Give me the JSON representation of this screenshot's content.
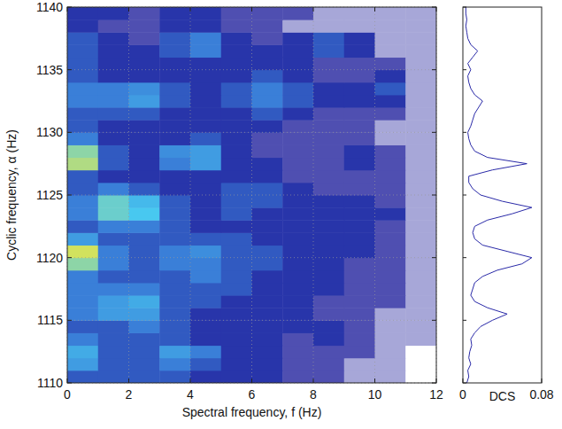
{
  "chart_data": [
    {
      "type": "heatmap",
      "xlabel": "Spectral frequency, f (Hz)",
      "ylabel": "Cyclic frequency, α (Hz)",
      "x_edges": [
        0,
        1,
        2,
        3,
        4,
        5,
        6,
        7,
        8,
        9,
        10,
        11,
        12
      ],
      "y_edges": [
        1110,
        1111,
        1112,
        1113,
        1114,
        1115,
        1116,
        1117,
        1118,
        1119,
        1120,
        1121,
        1122,
        1123,
        1124,
        1125,
        1126,
        1127,
        1128,
        1129,
        1130,
        1131,
        1132,
        1133,
        1134,
        1135,
        1136,
        1137,
        1138,
        1139,
        1140
      ],
      "values": [
        [
          0.4,
          0.4,
          0.4,
          0.4,
          0.3,
          0.3,
          0.3,
          0.2,
          0.2,
          0.1,
          0.1,
          0
        ],
        [
          0.6,
          0.4,
          0.4,
          0.5,
          0.4,
          0.3,
          0.3,
          0.2,
          0.2,
          0.1,
          0.1,
          0
        ],
        [
          0.65,
          0.4,
          0.4,
          0.6,
          0.5,
          0.3,
          0.3,
          0.2,
          0.2,
          0.2,
          0.1,
          0
        ],
        [
          0.5,
          0.4,
          0.4,
          0.4,
          0.3,
          0.3,
          0.3,
          0.2,
          0.3,
          0.2,
          0.1,
          0.1
        ],
        [
          0.4,
          0.4,
          0.5,
          0.4,
          0.3,
          0.3,
          0.3,
          0.3,
          0.3,
          0.2,
          0.1,
          0.1
        ],
        [
          0.5,
          0.6,
          0.6,
          0.4,
          0.3,
          0.3,
          0.3,
          0.3,
          0.2,
          0.2,
          0.1,
          0.1
        ],
        [
          0.5,
          0.6,
          0.65,
          0.4,
          0.4,
          0.3,
          0.3,
          0.3,
          0.2,
          0.2,
          0.2,
          0.1
        ],
        [
          0.5,
          0.5,
          0.5,
          0.4,
          0.4,
          0.4,
          0.3,
          0.3,
          0.3,
          0.2,
          0.2,
          0.1
        ],
        [
          0.5,
          0.4,
          0.4,
          0.4,
          0.5,
          0.4,
          0.3,
          0.3,
          0.3,
          0.2,
          0.2,
          0.1
        ],
        [
          0.85,
          0.5,
          0.4,
          0.5,
          0.5,
          0.4,
          0.4,
          0.3,
          0.3,
          0.2,
          0.2,
          0.1
        ],
        [
          0.95,
          0.5,
          0.4,
          0.5,
          0.55,
          0.4,
          0.4,
          0.3,
          0.3,
          0.3,
          0.2,
          0.1
        ],
        [
          0.6,
          0.4,
          0.4,
          0.4,
          0.4,
          0.4,
          0.3,
          0.3,
          0.3,
          0.3,
          0.2,
          0.1
        ],
        [
          0.4,
          0.5,
          0.5,
          0.4,
          0.3,
          0.3,
          0.3,
          0.3,
          0.3,
          0.3,
          0.2,
          0.1
        ],
        [
          0.5,
          0.8,
          0.75,
          0.4,
          0.3,
          0.4,
          0.3,
          0.3,
          0.3,
          0.3,
          0.3,
          0.1
        ],
        [
          0.5,
          0.8,
          0.7,
          0.4,
          0.3,
          0.4,
          0.4,
          0.3,
          0.3,
          0.3,
          0.2,
          0.1
        ],
        [
          0.4,
          0.5,
          0.4,
          0.3,
          0.3,
          0.4,
          0.4,
          0.3,
          0.2,
          0.2,
          0.2,
          0.1
        ],
        [
          0.4,
          0.3,
          0.3,
          0.3,
          0.3,
          0.3,
          0.3,
          0.2,
          0.2,
          0.2,
          0.2,
          0.1
        ],
        [
          0.9,
          0.4,
          0.3,
          0.5,
          0.6,
          0.3,
          0.3,
          0.2,
          0.2,
          0.3,
          0.2,
          0.1
        ],
        [
          0.85,
          0.4,
          0.3,
          0.55,
          0.6,
          0.3,
          0.2,
          0.2,
          0.2,
          0.3,
          0.2,
          0.1
        ],
        [
          0.5,
          0.3,
          0.3,
          0.3,
          0.4,
          0.3,
          0.2,
          0.2,
          0.2,
          0.2,
          0.1,
          0.1
        ],
        [
          0.4,
          0.3,
          0.3,
          0.3,
          0.3,
          0.3,
          0.3,
          0.2,
          0.2,
          0.2,
          0.1,
          0.1
        ],
        [
          0.4,
          0.4,
          0.4,
          0.3,
          0.3,
          0.3,
          0.4,
          0.3,
          0.2,
          0.2,
          0.2,
          0.1
        ],
        [
          0.5,
          0.5,
          0.6,
          0.4,
          0.3,
          0.4,
          0.5,
          0.4,
          0.3,
          0.3,
          0.3,
          0.1
        ],
        [
          0.5,
          0.5,
          0.55,
          0.4,
          0.3,
          0.4,
          0.5,
          0.4,
          0.3,
          0.3,
          0.4,
          0.1
        ],
        [
          0.4,
          0.3,
          0.3,
          0.3,
          0.3,
          0.3,
          0.4,
          0.3,
          0.2,
          0.2,
          0.3,
          0.1
        ],
        [
          0.4,
          0.3,
          0.3,
          0.3,
          0.3,
          0.3,
          0.3,
          0.3,
          0.2,
          0.2,
          0.2,
          0.1
        ],
        [
          0.4,
          0.3,
          0.3,
          0.4,
          0.5,
          0.3,
          0.3,
          0.3,
          0.4,
          0.3,
          0.1,
          0.1
        ],
        [
          0.4,
          0.3,
          0.2,
          0.4,
          0.5,
          0.3,
          0.2,
          0.3,
          0.4,
          0.3,
          0.1,
          0.1
        ],
        [
          0.3,
          0.2,
          0.2,
          0.3,
          0.3,
          0.2,
          0.2,
          0.1,
          0.1,
          0.1,
          0.1,
          0.1
        ],
        [
          0.3,
          0.3,
          0.2,
          0.3,
          0.3,
          0.2,
          0.2,
          0.2,
          0.1,
          0.1,
          0.1,
          0.1
        ]
      ],
      "color_range": [
        0,
        1
      ],
      "colors": [
        "#ffffff",
        "#23239e",
        "#3a7fd8",
        "#48c8f0",
        "#f5e83a"
      ],
      "xlim": [
        0,
        12
      ],
      "xticks": [
        0,
        2,
        4,
        6,
        8,
        10,
        12
      ],
      "ylim": [
        1110,
        1140
      ],
      "yticks": [
        1110,
        1115,
        1120,
        1125,
        1130,
        1135,
        1140
      ],
      "grid": true
    },
    {
      "type": "line",
      "orientation": "horizontal",
      "xlabel": "DCS",
      "y": [
        1110,
        1110.5,
        1111,
        1111.5,
        1112,
        1112.5,
        1113,
        1113.5,
        1114,
        1114.5,
        1115,
        1115.5,
        1116,
        1116.5,
        1117,
        1117.5,
        1118,
        1118.5,
        1119,
        1119.5,
        1120,
        1120.5,
        1121,
        1121.5,
        1122,
        1122.5,
        1123,
        1123.5,
        1124,
        1124.5,
        1125,
        1125.5,
        1126,
        1126.5,
        1127,
        1127.5,
        1128,
        1128.5,
        1129,
        1129.5,
        1130,
        1130.5,
        1131,
        1131.5,
        1132,
        1132.5,
        1133,
        1133.5,
        1134,
        1134.5,
        1135,
        1135.5,
        1136,
        1136.5,
        1137,
        1137.5,
        1138,
        1138.5,
        1139,
        1139.5,
        1140
      ],
      "values": [
        0.004,
        0.006,
        0.005,
        0.008,
        0.006,
        0.007,
        0.009,
        0.008,
        0.012,
        0.018,
        0.03,
        0.045,
        0.025,
        0.012,
        0.008,
        0.01,
        0.012,
        0.02,
        0.035,
        0.06,
        0.07,
        0.045,
        0.02,
        0.012,
        0.01,
        0.012,
        0.025,
        0.05,
        0.07,
        0.04,
        0.018,
        0.01,
        0.006,
        0.006,
        0.03,
        0.065,
        0.025,
        0.012,
        0.008,
        0.006,
        0.005,
        0.008,
        0.01,
        0.012,
        0.016,
        0.02,
        0.012,
        0.008,
        0.006,
        0.005,
        0.008,
        0.005,
        0.01,
        0.015,
        0.008,
        0.005,
        0.004,
        0.003,
        0.004,
        0.003,
        0.003
      ],
      "color": "#2a2aa8",
      "xlim": [
        0,
        0.08
      ],
      "xticks": [
        0,
        0.08
      ],
      "ylim": [
        1110,
        1140
      ],
      "yticks": [
        1110,
        1115,
        1120,
        1125,
        1130,
        1135,
        1140
      ],
      "tick_labels": "x",
      "grid": false
    }
  ]
}
